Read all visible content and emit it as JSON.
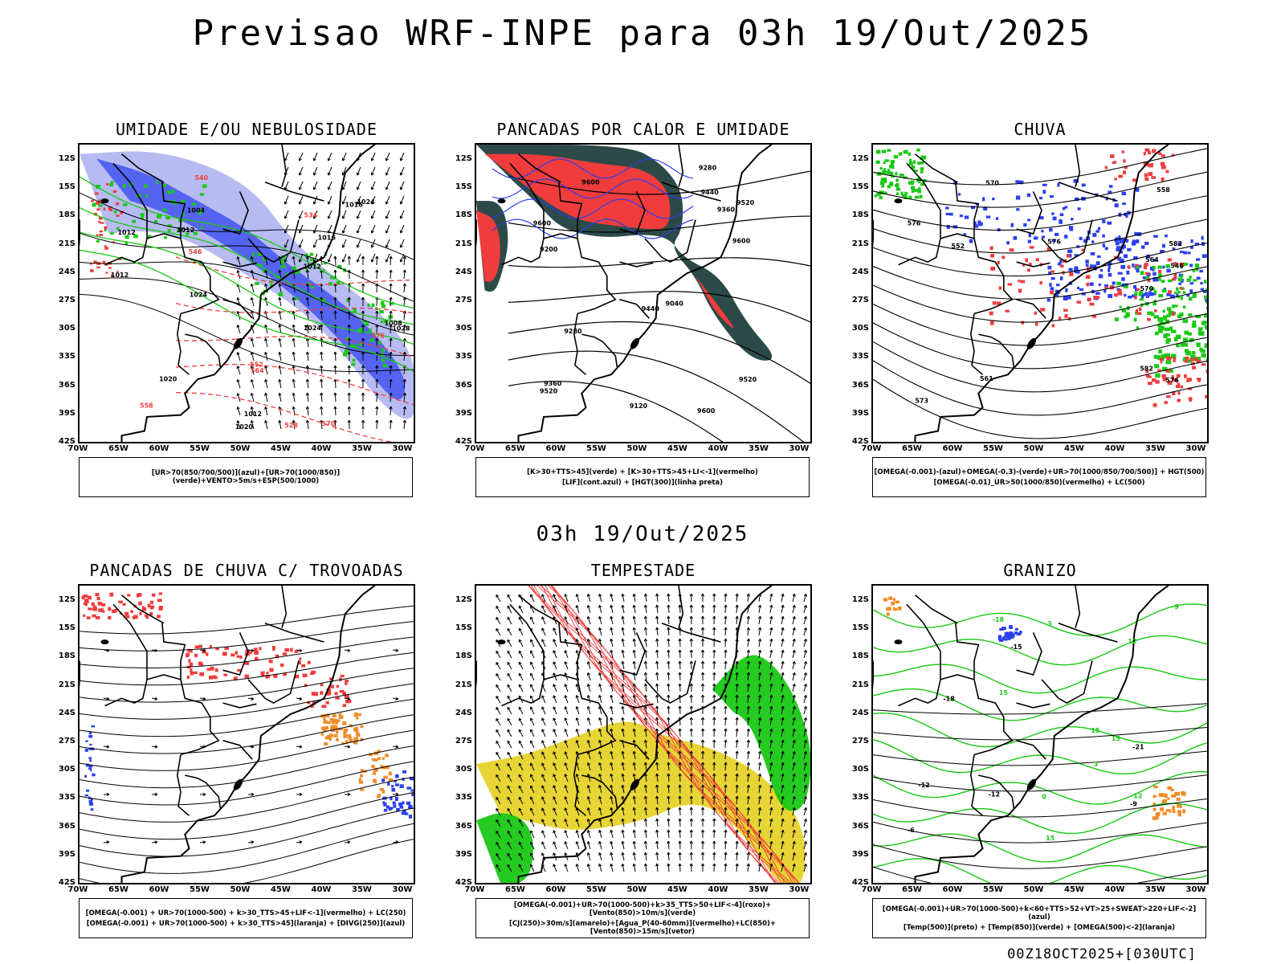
{
  "title": "Previsao WRF-INPE  para 03h 19/Out/2025",
  "subtitle": "03h 19/Out/2025",
  "footer": "00Z18OCT2025+[030UTC]",
  "axes": {
    "lat_ticks": [
      "12S",
      "15S",
      "18S",
      "21S",
      "24S",
      "27S",
      "30S",
      "33S",
      "36S",
      "39S",
      "42S"
    ],
    "lon_ticks": [
      "70W",
      "65W",
      "60W",
      "55W",
      "50W",
      "45W",
      "40W",
      "35W",
      "30W"
    ]
  },
  "colors": {
    "blue": "#2b3ff0",
    "light_blue": "#a9aff0",
    "green": "#19c814",
    "red": "#f03c3c",
    "dark_teal": "#2c4a48",
    "yellow": "#e6d22a",
    "orange": "#f08c28"
  },
  "panels": [
    {
      "title": "UMIDADE E/OU NEBULOSIDADE",
      "legend": [
        "[UR>70(850/700/500)](azul)+[UR>70(1000/850)](verde)+VENTO>5m/s+ESP(500/1000)"
      ],
      "contour_labels": [
        "1012",
        "1012",
        "1012",
        "1012",
        "1016",
        "1020",
        "1024",
        "1024",
        "1024",
        "1028",
        "1008",
        "1004",
        "1016",
        "1020",
        "1012",
        "576",
        "570",
        "564",
        "558",
        "552",
        "546",
        "540",
        "534",
        "528"
      ]
    },
    {
      "title": "PANCADAS POR CALOR E UMIDADE",
      "legend": [
        "[K>30+TTS>45](verde) + [K>30+TTS>45+LI<-1](vermelho)",
        "[LIF](cont.azul) + [HGT(300)](linha preta)"
      ],
      "contour_labels": [
        "9600",
        "9600",
        "9600",
        "9600",
        "9520",
        "9520",
        "9520",
        "9440",
        "9440",
        "9360",
        "9360",
        "9280",
        "9280",
        "9200",
        "9120",
        "9040"
      ]
    },
    {
      "title": "CHUVA",
      "legend": [
        "[OMEGA(-0.001)-(azul)+OMEGA(-0.3)-(verde)+UR>70(1000/850/700/500)] + HGT(500)",
        "[OMEGA(-0.01)_UR>50(1000/850)(vermelho) + LC(500)"
      ],
      "contour_labels": [
        "582",
        "582",
        "576",
        "576",
        "573",
        "570",
        "564",
        "561",
        "558",
        "552",
        "546",
        "576",
        "570"
      ]
    },
    {
      "title": "PANCADAS DE CHUVA C/ TROVOADAS",
      "legend": [
        "[OMEGA(-0.001) + UR>70(1000-500) + k>30_TTS>45+LIF<-1](vermelho) + LC(250)",
        "[OMEGA(-0.001) + UR>70(1000-500) + k>30_TTS>45](laranja) + [DIVG(250)](azul)"
      ],
      "contour_labels": []
    },
    {
      "title": "TEMPESTADE",
      "legend": [
        "[OMEGA(-0.001)+UR>70(1000-500)+k>35_TTS>50+LIF<-4](roxo)+[Vento(850)>10m/s](verde)",
        "[CJ(250)>30m/s](amarelo)+[Agua_P(40-60mm)](vermelho)+LC(850)+[Vento(850)>15m/s](vetor)"
      ],
      "contour_labels": []
    },
    {
      "title": "GRANIZO",
      "legend": [
        "[OMEGA(-0.001)+UR>70(1000-500)+k<60+TTS>52+VT>25+SWEAT>220+LIF<-2](azul)",
        "[Temp(500)](preto) + [Temp(850)](verde) + [OMEGA(500)<-2](laranja)"
      ],
      "contour_labels": [
        "-6",
        "-9",
        "-12",
        "-15",
        "-18",
        "-21",
        "-12",
        "15",
        "15",
        "15",
        "15",
        "12",
        "12",
        "9",
        "3",
        "-3",
        "0",
        "-18"
      ]
    }
  ]
}
